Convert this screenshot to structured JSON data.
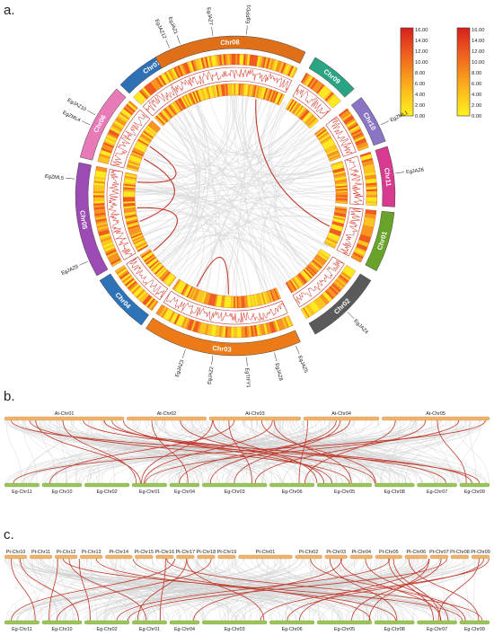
{
  "panels": {
    "a": {
      "letter": "a."
    },
    "b": {
      "letter": "b."
    },
    "c": {
      "letter": "c."
    }
  },
  "legend": {
    "ticks": [
      "16.00",
      "14.00",
      "12.00",
      "10.00",
      "8.00",
      "6.00",
      "4.00",
      "2.00",
      "0.00"
    ],
    "colors": {
      "high": "#e8241c",
      "mid": "#f7941d",
      "low": "#fff21e"
    }
  },
  "circos": {
    "chromosomes": [
      {
        "label": "Chr01",
        "color": "#6aa329"
      },
      {
        "label": "Chr02",
        "color": "#5a5a5a"
      },
      {
        "label": "Chr03",
        "color": "#ec7a16"
      },
      {
        "label": "Chr04",
        "color": "#2e73b8"
      },
      {
        "label": "Chr05",
        "color": "#9b4bb3"
      },
      {
        "label": "Chr06",
        "color": "#e87ab8"
      },
      {
        "label": "Chr07",
        "color": "#2e6fb5"
      },
      {
        "label": "Chr08",
        "color": "#e06f1a"
      },
      {
        "label": "Chr09",
        "color": "#2aa483"
      },
      {
        "label": "Chr10",
        "color": "#8a74c4"
      },
      {
        "label": "Chr11",
        "color": "#d83a8f"
      }
    ],
    "genes": [
      "EgJAZ7",
      "EgPPD1",
      "EgJAZ12",
      "EgJAZ1",
      "EgZML1",
      "EgJAZ10",
      "EgZML4",
      "EgJAZ6",
      "EgZML5",
      "EgJAZ9",
      "EgJAZ4",
      "EgJAZ5",
      "EgJAZ3",
      "EgJAZ2",
      "EgTIFY1",
      "EgJAZ8"
    ],
    "colors": {
      "link": "#c0392b",
      "background_link": "#d9d9d9"
    }
  },
  "panel_b": {
    "top": [
      "At-Chr01",
      "At-Chr02",
      "At-Chr03",
      "At-Chr04",
      "At-Chr05"
    ],
    "bottom": [
      "Eg-Chr11",
      "Eg-Chr10",
      "Eg-Chr02",
      "Eg-Chr01",
      "Eg-Chr04",
      "Eg-Chr03",
      "Eg-Chr06",
      "Eg-Chr05",
      "Eg-Chr08",
      "Eg-Chr07",
      "Eg-Chr09"
    ],
    "colors": {
      "top_bar": "#f0b36b",
      "bottom_bar": "#9bc45a",
      "link": "#c0392b"
    }
  },
  "panel_c": {
    "top": [
      "Pt-Chr10",
      "Pt-Chr11",
      "Pt-Chr12",
      "Pt-Chr13",
      "Pt-Chr14",
      "Pt-Chr15",
      "Pt-Chr16",
      "Pt-Chr17",
      "Pt-Chr18",
      "Pt-Chr19",
      "Pt-Chr01",
      "Pt-Chr02",
      "Pt-Chr03",
      "Pt-Chr04",
      "Pt-Chr05",
      "Pt-Chr06",
      "Pt-Chr07",
      "Pt-Chr08",
      "Pt-Chr09"
    ],
    "bottom": [
      "Eg-Chr11",
      "Eg-Chr10",
      "Eg-Chr02",
      "Eg-Chr01",
      "Eg-Chr04",
      "Eg-Chr03",
      "Eg-Chr06",
      "Eg-Chr05",
      "Eg-Chr08",
      "Eg-Chr07",
      "Eg-Chr09"
    ],
    "colors": {
      "top_bar": "#f0b36b",
      "bottom_bar": "#9bc45a",
      "link": "#c0392b"
    }
  }
}
